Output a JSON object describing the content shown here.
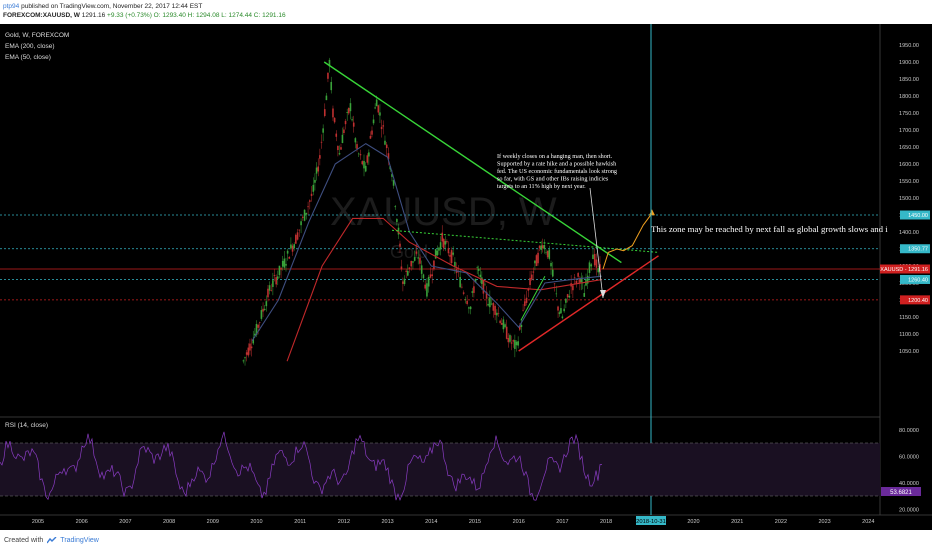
{
  "header": {
    "line1_user": "ptp94",
    "line1_rest": " published on TradingView.com, November 22, 2017 12:44 EST",
    "symbol": "FOREXCOM:XAUUSD, W",
    "last": "1291.16",
    "change": "+9.33 (+0.73%)",
    "ohlc": "O: 1293.40 H: 1294.08 L: 1274.44 C: 1291.16"
  },
  "legend": {
    "series": "Gold, W, FOREXCOM",
    "ema200": "EMA (200, close)",
    "ema50": "EMA (50, close)"
  },
  "watermark": {
    "symbol": "XAUUSD, W",
    "name": "Gold"
  },
  "annotations": {
    "note1": [
      "If weekly closes on a hanging man, then short.",
      "Supported by a rate hike and a possible hawkish",
      "fed. The US economic fundamentals look strong",
      "so far, with GS and other IBs raising indicies",
      "targets to an 11% high by next year."
    ],
    "note2": "This zone may be reached by next fall as global growth slows and i"
  },
  "rsi": {
    "label": "RSI (14, close)",
    "value_label": "53.6821",
    "upper": 70,
    "lower": 30
  },
  "footer": {
    "created": "Created with",
    "brand": "TradingView"
  },
  "colors": {
    "candle_up": "#3aa33a",
    "candle_down": "#c03030",
    "ema200": "#c0282a",
    "ema50": "#3e4e80",
    "trend_green": "#38d438",
    "trend_red": "#e02828",
    "vline": "#35b8c8",
    "rsi": "#8a3cc4",
    "forecast": "#f0a020"
  },
  "chart_data": {
    "type": "candlestick",
    "x_ticks": [
      "2005",
      "2006",
      "2007",
      "2008",
      "2009",
      "2010",
      "2011",
      "2012",
      "2013",
      "2014",
      "2015",
      "2016",
      "2017",
      "2018",
      "2019",
      "2020",
      "2021",
      "2022",
      "2023",
      "2024"
    ],
    "y_ticks": [
      1050,
      1100,
      1150,
      1200,
      1250,
      1300,
      1350,
      1400,
      1450,
      1500,
      1550,
      1600,
      1650,
      1700,
      1750,
      1800,
      1850,
      1900,
      1950
    ],
    "rsi_ticks": [
      "80.0000",
      "60.0000",
      "40.0000",
      "20.0000"
    ],
    "date_marker": "2018-10-31",
    "price_levels": [
      {
        "label": "1450.00",
        "value": 1450,
        "color": "#35b8c8"
      },
      {
        "label": "1350.77",
        "value": 1350.77,
        "color": "#35b8c8"
      },
      {
        "label": "1291.16",
        "prefix": "XAUUSD",
        "value": 1291.16,
        "color": "#d02020"
      },
      {
        "label": "1260.40",
        "value": 1260.4,
        "color": "#35b8c8"
      },
      {
        "label": "1200.40",
        "value": 1200.4,
        "color": "#d02020"
      }
    ],
    "price_path": [
      [
        2009.7,
        1020
      ],
      [
        2010.0,
        1110
      ],
      [
        2010.3,
        1230
      ],
      [
        2010.6,
        1300
      ],
      [
        2010.9,
        1380
      ],
      [
        2011.1,
        1450
      ],
      [
        2011.3,
        1520
      ],
      [
        2011.45,
        1620
      ],
      [
        2011.6,
        1800
      ],
      [
        2011.67,
        1900
      ],
      [
        2011.75,
        1750
      ],
      [
        2011.9,
        1630
      ],
      [
        2012.0,
        1700
      ],
      [
        2012.15,
        1770
      ],
      [
        2012.3,
        1640
      ],
      [
        2012.5,
        1580
      ],
      [
        2012.75,
        1790
      ],
      [
        2012.9,
        1700
      ],
      [
        2013.1,
        1580
      ],
      [
        2013.25,
        1400
      ],
      [
        2013.35,
        1250
      ],
      [
        2013.5,
        1300
      ],
      [
        2013.7,
        1330
      ],
      [
        2013.9,
        1230
      ],
      [
        2014.1,
        1330
      ],
      [
        2014.25,
        1380
      ],
      [
        2014.5,
        1320
      ],
      [
        2014.7,
        1240
      ],
      [
        2014.9,
        1180
      ],
      [
        2015.05,
        1290
      ],
      [
        2015.3,
        1200
      ],
      [
        2015.5,
        1170
      ],
      [
        2015.8,
        1080
      ],
      [
        2015.95,
        1060
      ],
      [
        2016.1,
        1160
      ],
      [
        2016.3,
        1270
      ],
      [
        2016.55,
        1370
      ],
      [
        2016.7,
        1330
      ],
      [
        2016.9,
        1180
      ],
      [
        2017.0,
        1150
      ],
      [
        2017.2,
        1240
      ],
      [
        2017.4,
        1270
      ],
      [
        2017.5,
        1220
      ],
      [
        2017.7,
        1340
      ],
      [
        2017.82,
        1280
      ],
      [
        2017.9,
        1291
      ]
    ],
    "ema200": [
      [
        2010.7,
        1020
      ],
      [
        2011.5,
        1300
      ],
      [
        2012.2,
        1440
      ],
      [
        2012.9,
        1440
      ],
      [
        2013.5,
        1370
      ],
      [
        2014.5,
        1300
      ],
      [
        2015.5,
        1240
      ],
      [
        2016.5,
        1230
      ],
      [
        2017.9,
        1260
      ]
    ],
    "ema50": [
      [
        2009.9,
        1080
      ],
      [
        2010.5,
        1200
      ],
      [
        2011.2,
        1430
      ],
      [
        2011.8,
        1600
      ],
      [
        2012.5,
        1660
      ],
      [
        2013.0,
        1620
      ],
      [
        2013.5,
        1400
      ],
      [
        2014.0,
        1300
      ],
      [
        2014.8,
        1280
      ],
      [
        2015.5,
        1190
      ],
      [
        2016.0,
        1120
      ],
      [
        2016.6,
        1250
      ],
      [
        2017.2,
        1260
      ],
      [
        2017.9,
        1270
      ]
    ],
    "trendlines": [
      {
        "color": "green",
        "points": [
          [
            2011.55,
            1900
          ],
          [
            2018.35,
            1310
          ]
        ]
      },
      {
        "color": "green_dotted",
        "points": [
          [
            2013.1,
            1405
          ],
          [
            2019.2,
            1340
          ]
        ]
      },
      {
        "color": "red",
        "points": [
          [
            2016.0,
            1050
          ],
          [
            2019.2,
            1330
          ]
        ]
      },
      {
        "color": "green_short",
        "points": [
          [
            2016.05,
            1140
          ],
          [
            2016.6,
            1270
          ]
        ]
      },
      {
        "color": "forecast",
        "points": [
          [
            2017.93,
            1291
          ],
          [
            2018.05,
            1340
          ],
          [
            2018.25,
            1350
          ],
          [
            2018.4,
            1345
          ],
          [
            2018.6,
            1360
          ],
          [
            2018.85,
            1420
          ],
          [
            2019.05,
            1455
          ]
        ]
      }
    ],
    "rsi_series": "approx 40–75 oscillation, last 53.68"
  }
}
